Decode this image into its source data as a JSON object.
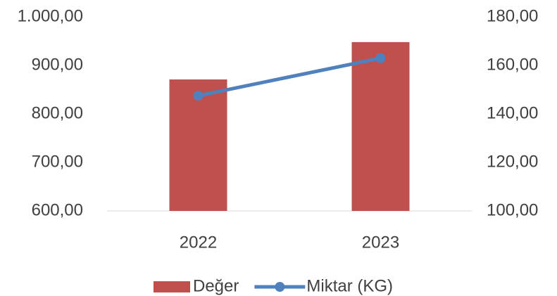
{
  "chart_data": {
    "type": "bar-line",
    "categories": [
      "2022",
      "2023"
    ],
    "series": [
      {
        "name": "Değer",
        "color": "#c0504d",
        "type": "bar",
        "values": [
          871,
          948
        ]
      },
      {
        "name": "Miktar (KG)",
        "color": "#4f81bd",
        "type": "line",
        "axis": "y2",
        "values": [
          147.5,
          163
        ]
      }
    ],
    "ylim": [
      600,
      1000
    ],
    "yticks": [
      {
        "value": 600,
        "label": "600,00"
      },
      {
        "value": 700,
        "label": "700,00"
      },
      {
        "value": 800,
        "label": "800,00"
      },
      {
        "value": 900,
        "label": "900,00"
      },
      {
        "value": 1000,
        "label": "1.000,00"
      }
    ],
    "y2lim": [
      100,
      180
    ],
    "y2ticks": [
      {
        "value": 100,
        "label": "100,00"
      },
      {
        "value": 120,
        "label": "120,00"
      },
      {
        "value": 140,
        "label": "140,00"
      },
      {
        "value": 160,
        "label": "160,00"
      },
      {
        "value": 180,
        "label": "180,00"
      }
    ],
    "legend": "bottom"
  }
}
